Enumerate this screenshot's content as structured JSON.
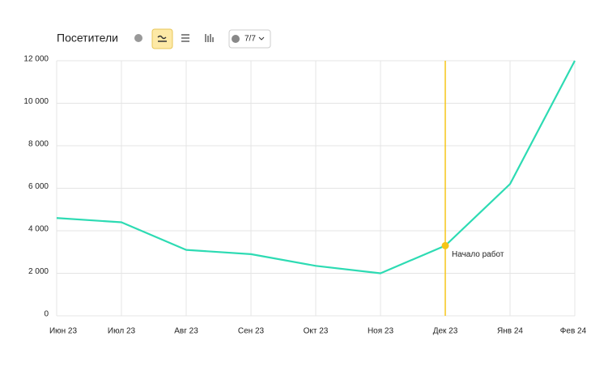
{
  "chart_data": {
    "type": "line",
    "title": "Посетители",
    "categories": [
      "Июн 23",
      "Июл 23",
      "Авг 23",
      "Сен 23",
      "Окт 23",
      "Ноя 23",
      "Дек 23",
      "Янв 24",
      "Фев 24"
    ],
    "series": [
      {
        "name": "Посетители",
        "color": "#2ddbb3",
        "values": [
          4600,
          4400,
          3100,
          2900,
          2350,
          2000,
          3300,
          6200,
          12000
        ]
      }
    ],
    "ylim": [
      0,
      12000
    ],
    "yticks": [
      0,
      {
        "value": 2000,
        "label": "2 000"
      },
      {
        "value": 4000,
        "label": "4 000"
      },
      {
        "value": 6000,
        "label": "6 000"
      },
      {
        "value": 8000,
        "label": "8 000"
      },
      {
        "value": 10000,
        "label": "10 000"
      },
      {
        "value": 12000,
        "label": "12 000"
      }
    ],
    "grid": true,
    "annotations": [
      {
        "category": "Дек 23",
        "text": "Начало работ",
        "color": "#f5c518"
      }
    ]
  },
  "toolbar": {
    "comments_button": "7/7"
  }
}
